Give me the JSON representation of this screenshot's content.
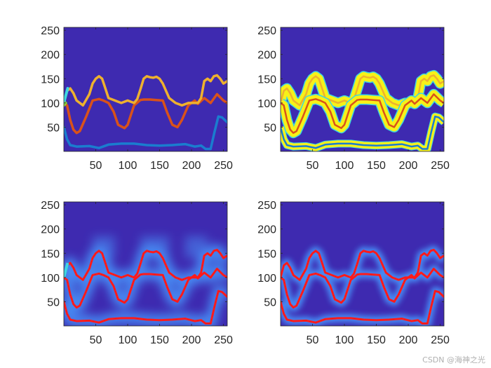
{
  "watermark": "CSDN @海神之光",
  "colors": {
    "background": "#3e2ab0",
    "blue_line": "#1a7dcf",
    "orange_line": "#d9521a",
    "gold_line": "#eeb12e",
    "yellow_band": "#f7f118",
    "red_line": "#ff1a1a",
    "cyan_edge": "#3dd6e0",
    "green_edge": "#8bd33c",
    "glow": "#4a9bff"
  },
  "chart_data": [
    {
      "type": "line",
      "panel": "top-left",
      "xlim": [
        0,
        256
      ],
      "ylim": [
        0,
        256
      ],
      "xticks": [
        "50",
        "100",
        "150",
        "200",
        "250"
      ],
      "yticks": [
        "50",
        "100",
        "150",
        "200",
        "250"
      ],
      "series": [
        {
          "color": "blue_line",
          "x": [
            0,
            5,
            10,
            20,
            40,
            55,
            70,
            90,
            110,
            130,
            150,
            170,
            190,
            205,
            215,
            222,
            230,
            236,
            242,
            248,
            256
          ],
          "y": [
            50,
            25,
            13,
            10,
            11,
            7,
            14,
            16,
            16,
            13,
            12,
            13,
            15,
            10,
            12,
            5,
            5,
            40,
            72,
            70,
            60
          ]
        },
        {
          "color": "orange_line",
          "x": [
            0,
            5,
            10,
            15,
            20,
            25,
            35,
            45,
            55,
            62,
            70,
            78,
            85,
            95,
            100,
            110,
            120,
            125,
            135,
            145,
            155,
            162,
            170,
            178,
            185,
            195,
            205,
            210,
            220,
            230,
            240,
            250,
            256
          ],
          "y": [
            100,
            95,
            65,
            45,
            38,
            42,
            72,
            105,
            108,
            105,
            100,
            82,
            55,
            48,
            55,
            95,
            106,
            107,
            107,
            106,
            105,
            80,
            55,
            50,
            65,
            95,
            105,
            98,
            110,
            100,
            118,
            105,
            100
          ]
        },
        {
          "color": "gold_line",
          "x": [
            0,
            5,
            10,
            15,
            20,
            30,
            40,
            45,
            50,
            55,
            60,
            65,
            70,
            80,
            90,
            100,
            110,
            115,
            120,
            125,
            130,
            135,
            140,
            145,
            150,
            155,
            165,
            175,
            185,
            195,
            205,
            210,
            215,
            220,
            225,
            230,
            235,
            240,
            245,
            250,
            256
          ],
          "y": [
            100,
            125,
            130,
            120,
            105,
            95,
            118,
            140,
            150,
            155,
            150,
            130,
            110,
            105,
            100,
            105,
            100,
            108,
            128,
            150,
            155,
            153,
            152,
            154,
            150,
            140,
            110,
            100,
            95,
            100,
            100,
            100,
            110,
            145,
            150,
            145,
            155,
            157,
            150,
            140,
            145
          ]
        },
        {
          "color": "cyan_edge",
          "x": [
            0,
            3,
            6
          ],
          "y": [
            100,
            115,
            130
          ]
        },
        {
          "color": "green_edge",
          "x": [
            0,
            3
          ],
          "y": [
            95,
            100
          ]
        }
      ]
    },
    {
      "type": "heatmap",
      "panel": "top-right",
      "xlim": [
        0,
        256
      ],
      "ylim": [
        0,
        256
      ],
      "xticks": [
        "50",
        "100",
        "150",
        "200",
        "250"
      ],
      "yticks": [
        "50",
        "100",
        "150",
        "200",
        "250"
      ],
      "series": [
        {
          "color": "yellow_band",
          "x": [
            0,
            5,
            10,
            15,
            20,
            30,
            40,
            45,
            50,
            55,
            60,
            65,
            70,
            80,
            90,
            100,
            110,
            115,
            120,
            125,
            130,
            135,
            140,
            145,
            150,
            155,
            165,
            175,
            185,
            195,
            205,
            210,
            215,
            220,
            225,
            230,
            235,
            240,
            245,
            250,
            256
          ],
          "y": [
            100,
            125,
            130,
            120,
            105,
            95,
            118,
            140,
            150,
            155,
            150,
            130,
            110,
            105,
            100,
            105,
            100,
            108,
            128,
            150,
            155,
            153,
            152,
            154,
            150,
            140,
            110,
            100,
            95,
            100,
            100,
            100,
            110,
            145,
            150,
            145,
            155,
            157,
            150,
            140,
            145
          ]
        },
        {
          "color": "yellow_band",
          "x": [
            0,
            5,
            10,
            15,
            20,
            25,
            35,
            45,
            55,
            62,
            70,
            78,
            85,
            95,
            100,
            110,
            120,
            125,
            135,
            145,
            155,
            162,
            170,
            178,
            185,
            195,
            205,
            210,
            220,
            230,
            240,
            250,
            256
          ],
          "y": [
            100,
            95,
            65,
            45,
            38,
            42,
            72,
            105,
            108,
            105,
            100,
            82,
            55,
            48,
            55,
            95,
            106,
            107,
            107,
            106,
            105,
            80,
            55,
            50,
            65,
            95,
            105,
            98,
            110,
            100,
            118,
            105,
            100
          ]
        },
        {
          "color": "yellow_band",
          "x": [
            0,
            5,
            10,
            20,
            40,
            55,
            70,
            90,
            110,
            130,
            150,
            170,
            190,
            205,
            215,
            222,
            230,
            236,
            242,
            248,
            256
          ],
          "y": [
            50,
            25,
            13,
            10,
            11,
            7,
            14,
            16,
            16,
            13,
            12,
            13,
            15,
            10,
            12,
            5,
            5,
            40,
            72,
            70,
            60
          ]
        }
      ]
    },
    {
      "type": "heatmap",
      "panel": "bottom-left",
      "xlim": [
        0,
        256
      ],
      "ylim": [
        0,
        256
      ],
      "xticks": [
        "50",
        "100",
        "150",
        "200",
        "250"
      ],
      "yticks": [
        "50",
        "100",
        "150",
        "200",
        "250"
      ],
      "series": [
        {
          "color": "red_line",
          "x": [
            0,
            5,
            10,
            15,
            20,
            30,
            40,
            45,
            50,
            55,
            60,
            65,
            70,
            80,
            90,
            100,
            110,
            115,
            120,
            125,
            130,
            135,
            140,
            145,
            150,
            155,
            165,
            175,
            185,
            195,
            205,
            210,
            215,
            220,
            225,
            230,
            235,
            240,
            245,
            250,
            256
          ],
          "y": [
            100,
            125,
            130,
            120,
            105,
            95,
            118,
            140,
            150,
            155,
            150,
            130,
            110,
            105,
            100,
            105,
            100,
            108,
            128,
            150,
            155,
            153,
            152,
            154,
            150,
            140,
            110,
            100,
            95,
            100,
            100,
            100,
            110,
            145,
            150,
            145,
            155,
            157,
            150,
            140,
            145
          ]
        },
        {
          "color": "red_line",
          "x": [
            0,
            5,
            10,
            15,
            20,
            25,
            35,
            45,
            55,
            62,
            70,
            78,
            85,
            95,
            100,
            110,
            120,
            125,
            135,
            145,
            155,
            162,
            170,
            178,
            185,
            195,
            205,
            210,
            220,
            230,
            240,
            250,
            256
          ],
          "y": [
            100,
            95,
            65,
            45,
            38,
            42,
            72,
            105,
            108,
            105,
            100,
            82,
            55,
            48,
            55,
            95,
            106,
            107,
            107,
            106,
            105,
            80,
            55,
            50,
            65,
            95,
            105,
            98,
            110,
            100,
            118,
            105,
            100
          ]
        },
        {
          "color": "red_line",
          "x": [
            0,
            5,
            10,
            20,
            40,
            55,
            70,
            90,
            110,
            130,
            150,
            170,
            190,
            205,
            215,
            222,
            230,
            236,
            242,
            248,
            256
          ],
          "y": [
            50,
            25,
            13,
            10,
            11,
            7,
            14,
            16,
            16,
            13,
            12,
            13,
            15,
            10,
            12,
            5,
            5,
            40,
            72,
            70,
            60
          ]
        }
      ]
    },
    {
      "type": "heatmap",
      "panel": "bottom-right",
      "xlim": [
        0,
        256
      ],
      "ylim": [
        0,
        256
      ],
      "xticks": [
        "50",
        "100",
        "150",
        "200",
        "250"
      ],
      "yticks": [
        "50",
        "100",
        "150",
        "200",
        "250"
      ],
      "series": [
        {
          "color": "red_line",
          "x": [
            0,
            5,
            10,
            15,
            20,
            30,
            40,
            45,
            50,
            55,
            60,
            65,
            70,
            80,
            90,
            100,
            110,
            115,
            120,
            125,
            130,
            135,
            140,
            145,
            150,
            155,
            165,
            175,
            185,
            195,
            205,
            210,
            215,
            220,
            225,
            230,
            235,
            240,
            245,
            250,
            256
          ],
          "y": [
            100,
            125,
            130,
            120,
            105,
            95,
            118,
            140,
            150,
            155,
            150,
            130,
            110,
            105,
            100,
            105,
            100,
            108,
            128,
            150,
            155,
            153,
            152,
            154,
            150,
            140,
            110,
            100,
            95,
            100,
            100,
            100,
            110,
            145,
            150,
            145,
            155,
            157,
            150,
            140,
            145
          ]
        },
        {
          "color": "red_line",
          "x": [
            0,
            5,
            10,
            15,
            20,
            25,
            35,
            45,
            55,
            62,
            70,
            78,
            85,
            95,
            100,
            110,
            120,
            125,
            135,
            145,
            155,
            162,
            170,
            178,
            185,
            195,
            205,
            210,
            220,
            230,
            240,
            250,
            256
          ],
          "y": [
            100,
            95,
            65,
            45,
            38,
            42,
            72,
            105,
            108,
            105,
            100,
            82,
            55,
            48,
            55,
            95,
            106,
            107,
            107,
            106,
            105,
            80,
            55,
            50,
            65,
            95,
            105,
            98,
            110,
            100,
            118,
            105,
            100
          ]
        },
        {
          "color": "red_line",
          "x": [
            0,
            5,
            10,
            20,
            40,
            55,
            70,
            90,
            110,
            130,
            150,
            170,
            190,
            205,
            215,
            222,
            230,
            236,
            242,
            248,
            256
          ],
          "y": [
            50,
            25,
            13,
            10,
            11,
            7,
            14,
            16,
            16,
            13,
            12,
            13,
            15,
            10,
            12,
            5,
            5,
            40,
            72,
            70,
            60
          ]
        }
      ]
    }
  ]
}
